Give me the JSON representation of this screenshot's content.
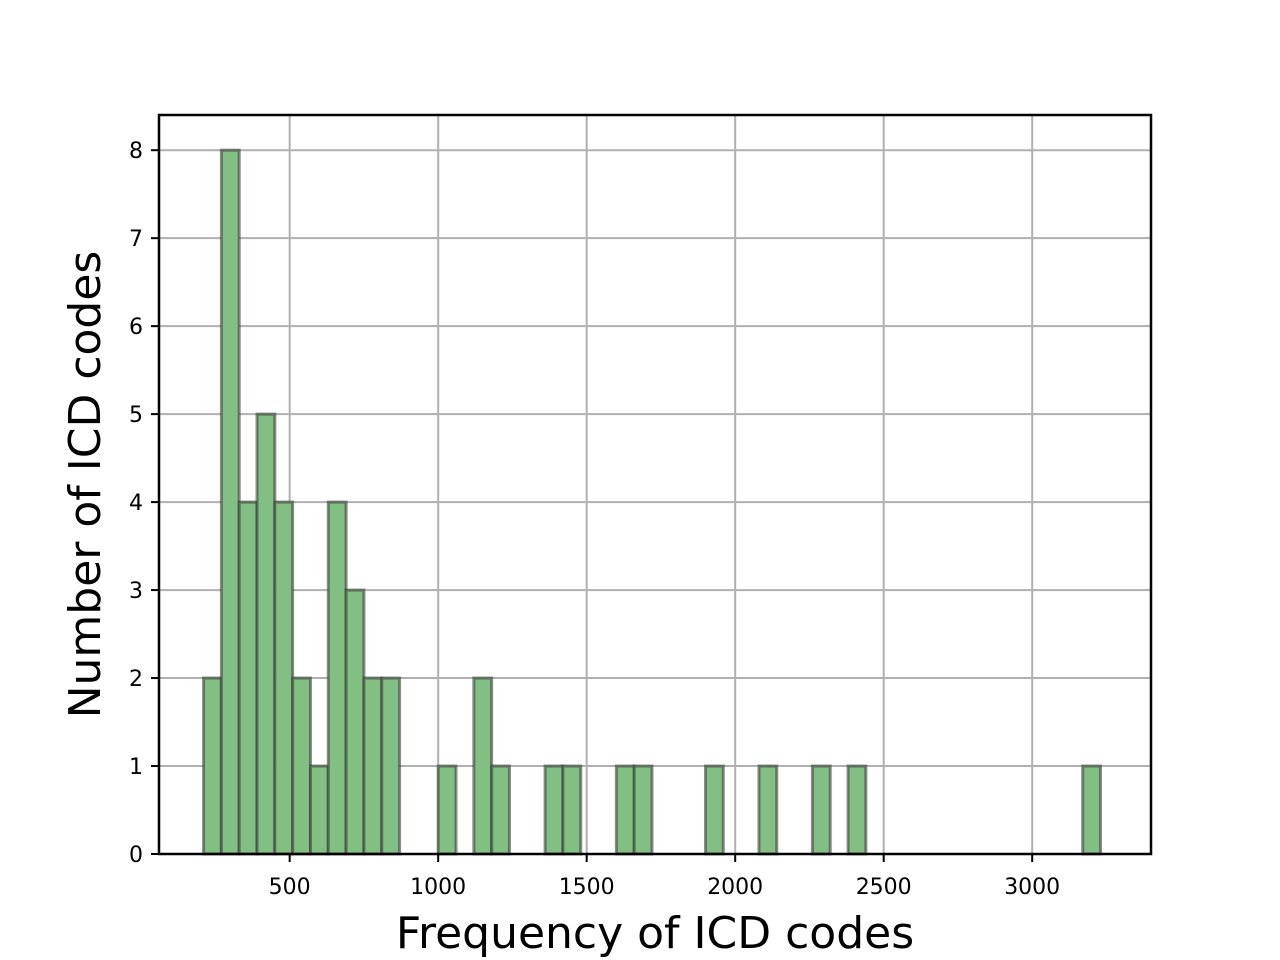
{
  "chart_data": {
    "type": "bar",
    "title": "",
    "xlabel": "Frequency of ICD codes",
    "ylabel": "Number of ICD codes",
    "xlim": [
      60,
      3400
    ],
    "ylim": [
      0,
      8.4
    ],
    "xticks": [
      500,
      1000,
      1500,
      2000,
      2500,
      3000
    ],
    "yticks": [
      0,
      1,
      2,
      3,
      4,
      5,
      6,
      7,
      8
    ],
    "grid": true,
    "bin_width": 60,
    "bins": [
      {
        "x": 210,
        "count": 2
      },
      {
        "x": 270,
        "count": 8
      },
      {
        "x": 330,
        "count": 4
      },
      {
        "x": 390,
        "count": 5
      },
      {
        "x": 450,
        "count": 4
      },
      {
        "x": 510,
        "count": 2
      },
      {
        "x": 570,
        "count": 1
      },
      {
        "x": 630,
        "count": 4
      },
      {
        "x": 690,
        "count": 3
      },
      {
        "x": 750,
        "count": 2
      },
      {
        "x": 810,
        "count": 2
      },
      {
        "x": 1000,
        "count": 1
      },
      {
        "x": 1120,
        "count": 2
      },
      {
        "x": 1180,
        "count": 1
      },
      {
        "x": 1360,
        "count": 1
      },
      {
        "x": 1420,
        "count": 1
      },
      {
        "x": 1600,
        "count": 1
      },
      {
        "x": 1660,
        "count": 1
      },
      {
        "x": 1900,
        "count": 1
      },
      {
        "x": 2080,
        "count": 1
      },
      {
        "x": 2260,
        "count": 1
      },
      {
        "x": 2380,
        "count": 1
      },
      {
        "x": 3170,
        "count": 1
      }
    ],
    "bar_color": "#82bf82",
    "edge_color": "#3d3d3d"
  }
}
